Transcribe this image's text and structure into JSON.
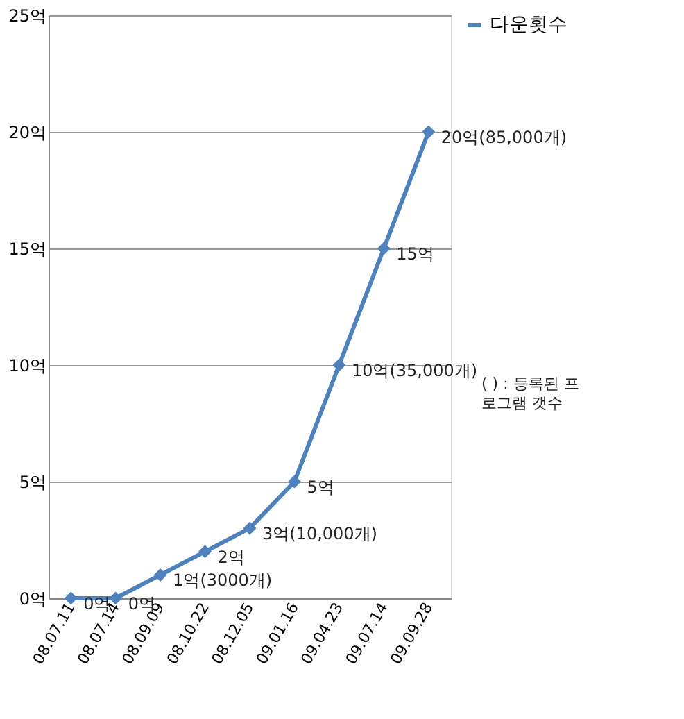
{
  "chart_data": {
    "type": "line",
    "categories": [
      "08.07.11",
      "08.07.14",
      "08.09.09",
      "08.10.22",
      "08.12.05",
      "09.01.16",
      "09.04.23",
      "09.07.14",
      "09.09.28"
    ],
    "series": [
      {
        "name": "다운횟수",
        "color": "#4f81bd",
        "values": [
          0,
          0,
          1,
          2,
          3,
          5,
          10,
          15,
          20
        ],
        "value_labels": [
          "0억",
          "0억",
          "1억(3000개)",
          "2억",
          "3억(10,000개)",
          "5억",
          "10억(35,000개)",
          "15억",
          "20억(85,000개)"
        ]
      }
    ],
    "ylim": [
      0,
      25
    ],
    "yticks": [
      {
        "value": 0,
        "label": "0억"
      },
      {
        "value": 5,
        "label": "5억"
      },
      {
        "value": 10,
        "label": "10억"
      },
      {
        "value": 15,
        "label": "15억"
      },
      {
        "value": 20,
        "label": "20억"
      },
      {
        "value": 25,
        "label": "25억"
      }
    ],
    "annotations": [
      "( ) : 등록된 프로그램 갯수"
    ],
    "grid": "y",
    "legend": "right",
    "marker": "diamond",
    "line_style": "solid"
  }
}
